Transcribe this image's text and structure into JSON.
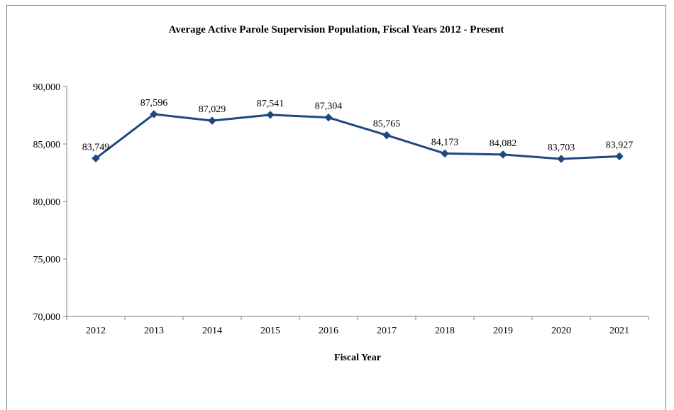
{
  "chart_data": {
    "type": "line",
    "title": "Average Active Parole Supervision Population, Fiscal Years 2012 - Present",
    "xlabel": "Fiscal Year",
    "ylabel": "",
    "categories": [
      "2012",
      "2013",
      "2014",
      "2015",
      "2016",
      "2017",
      "2018",
      "2019",
      "2020",
      "2021"
    ],
    "series": [
      {
        "values": [
          83749,
          87596,
          87029,
          87541,
          87304,
          85765,
          84173,
          84082,
          83703,
          83927
        ],
        "data_labels": [
          "83,749",
          "87,596",
          "87,029",
          "87,541",
          "87,304",
          "85,765",
          "84,173",
          "84,082",
          "83,703",
          "83,927"
        ],
        "color": "#1f497d",
        "marker": "diamond"
      }
    ],
    "ylim": [
      70000,
      90000
    ],
    "yticks": [
      70000,
      75000,
      80000,
      85000,
      90000
    ],
    "ytick_labels": [
      "70,000",
      "75,000",
      "80,000",
      "85,000",
      "90,000"
    ],
    "grid": false,
    "legend": "none"
  }
}
